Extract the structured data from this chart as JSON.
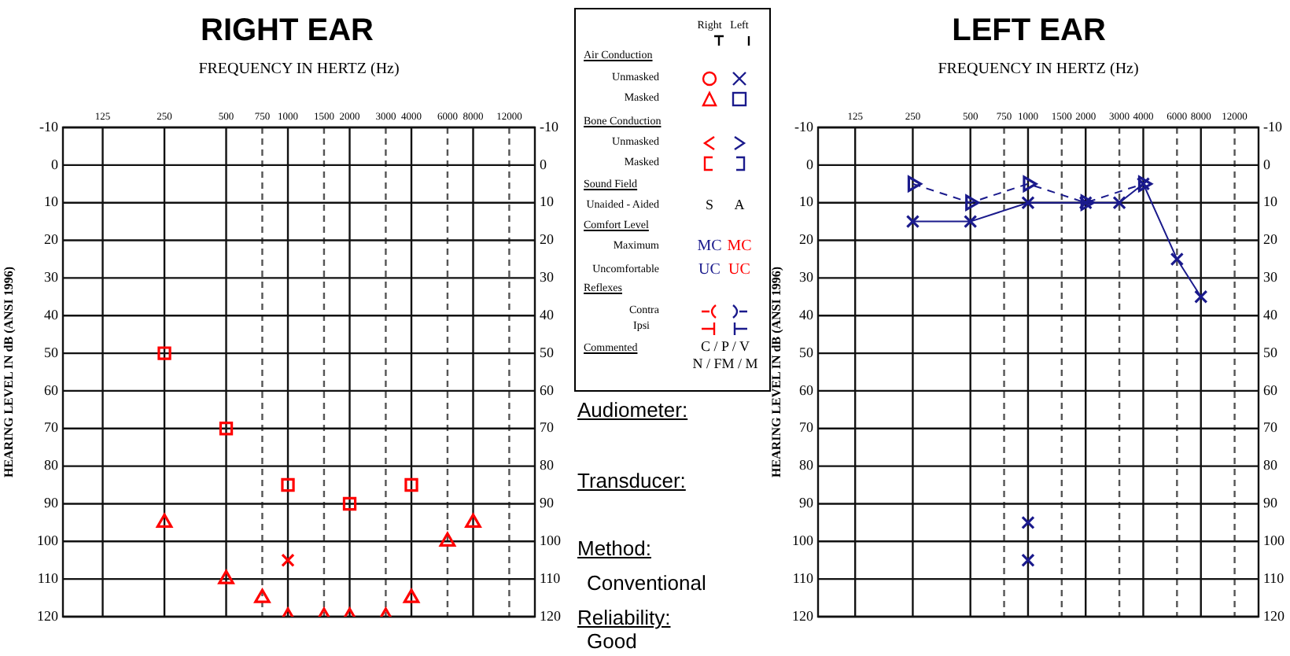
{
  "chart_data": [
    {
      "type": "scatter",
      "title": "RIGHT EAR",
      "xlabel": "FREQUENCY IN HERTZ (Hz)",
      "ylabel": "HEARING LEVEL IN dB (ANSI 1996)",
      "log": "x",
      "grid": true,
      "xlim": [
        80,
        16000
      ],
      "xticks": [
        125,
        250,
        500,
        750,
        1000,
        1500,
        2000,
        3000,
        4000,
        6000,
        8000,
        12000
      ],
      "ylim": [
        120,
        -10
      ],
      "yticks": [
        -10,
        0,
        10,
        20,
        30,
        40,
        50,
        60,
        70,
        80,
        90,
        100,
        110,
        120
      ],
      "y2lim": [
        120,
        -10
      ],
      "y2ticks": [
        -10,
        0,
        10,
        20,
        30,
        40,
        50,
        60,
        70,
        80,
        90,
        100,
        110,
        120
      ],
      "series": [
        {
          "color": "#ff0000",
          "marker": "triangle",
          "x": [
            250,
            500,
            750,
            1000,
            1500,
            2000,
            3000,
            4000,
            6000,
            8000
          ],
          "values": [
            95,
            110,
            115,
            120,
            120,
            120,
            120,
            115,
            100,
            95
          ]
        },
        {
          "color": "#ff0000",
          "marker": "square",
          "x": [
            250,
            500,
            1000,
            2000,
            4000
          ],
          "values": [
            50,
            70,
            85,
            90,
            85
          ]
        },
        {
          "color": "#ff0000",
          "marker": "cross",
          "x": [
            1000
          ],
          "values": [
            105
          ]
        }
      ]
    },
    {
      "type": "other",
      "annotations": [
        "Right",
        "Left",
        "Air Conduction",
        "Unmasked",
        "Masked",
        "Bone Conduction",
        "Unmasked",
        "Masked",
        "Sound Field",
        "Unaided - Aided",
        "S",
        "A",
        "Comfort Level",
        "Maximum",
        "MC",
        "MC",
        "Uncomfortable",
        "UC",
        "UC",
        "Reflexes",
        "Contra",
        "Ipsi",
        "Commented",
        "C / P / V",
        "N / FM / M"
      ]
    },
    {
      "type": "other",
      "annotations": [
        "Audiometer:",
        "Transducer:",
        "Method:",
        "Conventional",
        "Reliability:",
        "Good"
      ]
    },
    {
      "type": "scatter",
      "title": "LEFT EAR",
      "xlabel": "FREQUENCY IN HERTZ (Hz)",
      "ylabel": "HEARING LEVEL IN dB (ANSI 1996)",
      "log": "x",
      "grid": true,
      "xlim": [
        80,
        16000
      ],
      "xticks": [
        125,
        250,
        500,
        750,
        1000,
        1500,
        2000,
        3000,
        4000,
        6000,
        8000,
        12000
      ],
      "ylim": [
        120,
        -10
      ],
      "yticks": [
        -10,
        0,
        10,
        20,
        30,
        40,
        50,
        60,
        70,
        80,
        90,
        100,
        110,
        120
      ],
      "y2lim": [
        120,
        -10
      ],
      "y2ticks": [
        -10,
        0,
        10,
        20,
        30,
        40,
        50,
        60,
        70,
        80,
        90,
        100,
        110,
        120
      ],
      "series": [
        {
          "type": "line",
          "color": "#1a1a8c",
          "marker": "cross",
          "line_style": "solid",
          "x": [
            250,
            500,
            1000,
            2000,
            3000,
            4000,
            6000,
            8000
          ],
          "values": [
            15,
            15,
            10,
            10,
            10,
            5,
            25,
            35
          ]
        },
        {
          "type": "line",
          "color": "#1a1a8c",
          "marker": "triangle",
          "line_style": "dashed",
          "x": [
            250,
            500,
            1000,
            2000,
            4000
          ],
          "values": [
            5,
            10,
            5,
            10,
            5
          ]
        },
        {
          "color": "#1a1a8c",
          "marker": "cross",
          "x": [
            1000
          ],
          "values": [
            95
          ]
        },
        {
          "color": "#1a1a8c",
          "marker": "cross",
          "x": [
            1000
          ],
          "values": [
            105
          ]
        }
      ]
    }
  ]
}
